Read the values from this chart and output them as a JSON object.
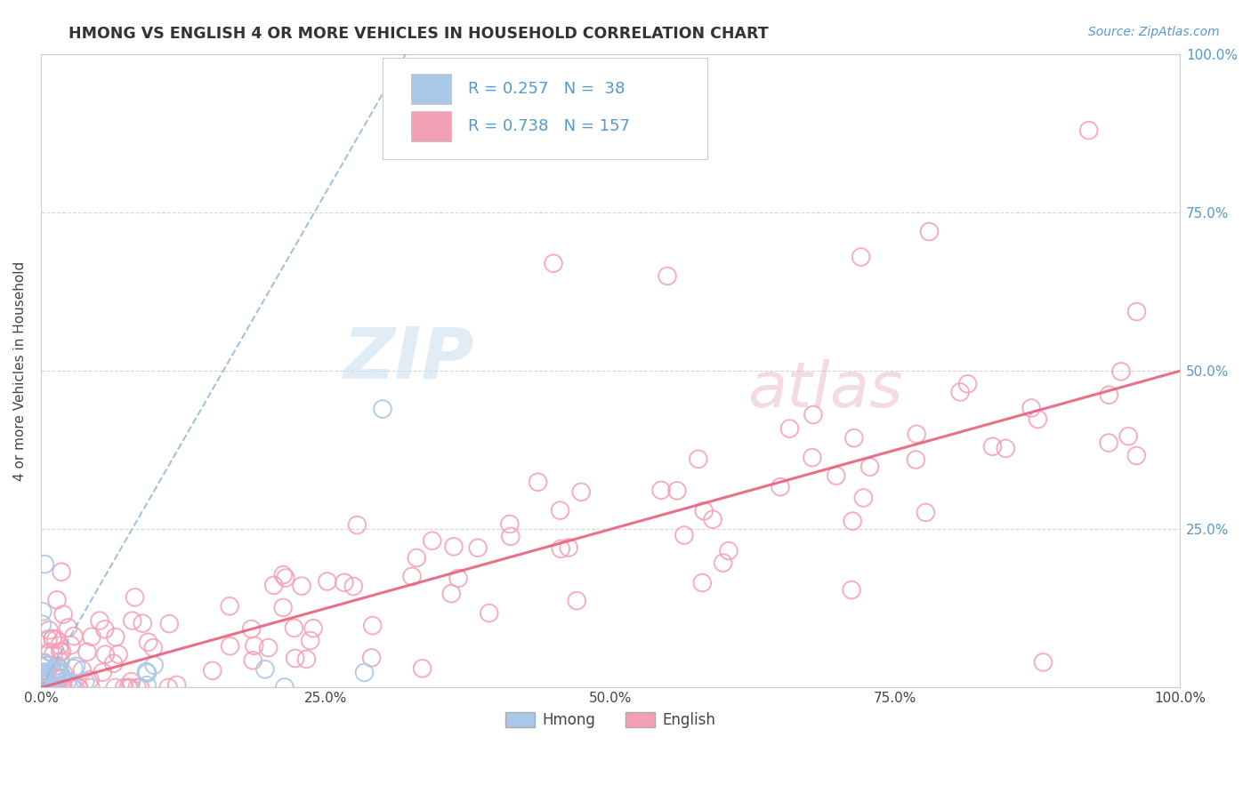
{
  "title": "HMONG VS ENGLISH 4 OR MORE VEHICLES IN HOUSEHOLD CORRELATION CHART",
  "source_text": "Source: ZipAtlas.com",
  "ylabel": "4 or more Vehicles in Household",
  "legend_hmong": "Hmong",
  "legend_english": "English",
  "R_hmong": 0.257,
  "N_hmong": 38,
  "R_english": 0.738,
  "N_english": 157,
  "watermark_zip": "ZIP",
  "watermark_atlas": "atlas",
  "xlim": [
    0.0,
    1.0
  ],
  "ylim": [
    0.0,
    1.0
  ],
  "xtick_vals": [
    0.0,
    0.25,
    0.5,
    0.75,
    1.0
  ],
  "xtick_labels": [
    "0.0%",
    "25.0%",
    "50.0%",
    "75.0%",
    "100.0%"
  ],
  "ytick_vals": [
    0.0,
    0.25,
    0.5,
    0.75,
    1.0
  ],
  "ytick_labels_right": [
    "",
    "25.0%",
    "50.0%",
    "75.0%",
    "100.0%"
  ],
  "color_hmong": "#a8c8e8",
  "color_english": "#f4a0b4",
  "line_hmong_color": "#90b8d8",
  "line_english_color": "#e8607a",
  "title_color": "#333333",
  "source_color": "#5599cc",
  "tick_color": "#5599cc",
  "hmong_line_x0": 0.0,
  "hmong_line_y0": 0.0,
  "hmong_line_x1": 0.32,
  "hmong_line_y1": 1.0,
  "english_line_x0": 0.0,
  "english_line_y0": 0.0,
  "english_line_x1": 1.0,
  "english_line_y1": 0.5
}
